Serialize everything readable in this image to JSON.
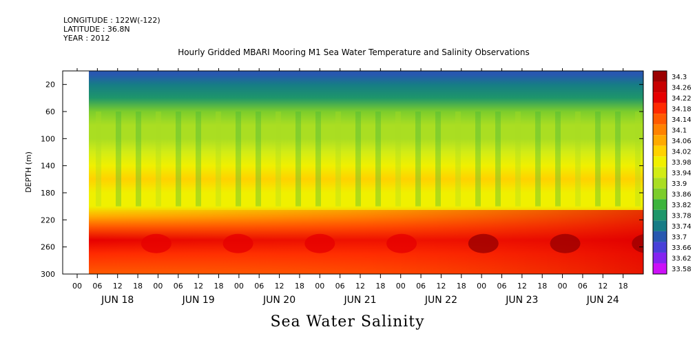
{
  "header": {
    "longitude": "LONGITUDE : 122W(-122)",
    "latitude": "LATITUDE : 36.8N",
    "year": "YEAR : 2012"
  },
  "chart_data": {
    "type": "heatmap",
    "title": "Hourly Gridded MBARI Mooring M1 Sea Water Temperature and Salinity Observations",
    "variable_label": "Sea Water Salinity",
    "ylabel": "DEPTH (m)",
    "y_ticks": [
      20,
      60,
      100,
      140,
      180,
      220,
      260,
      300
    ],
    "ylim": [
      300,
      0
    ],
    "y_reversed": true,
    "x_hour_ticks": [
      "00",
      "06",
      "12",
      "18",
      "00",
      "06",
      "12",
      "18",
      "00",
      "06",
      "12",
      "18",
      "00",
      "06",
      "12",
      "18",
      "00",
      "06",
      "12",
      "18",
      "00",
      "06",
      "12",
      "18",
      "00",
      "06",
      "12",
      "18"
    ],
    "x_day_labels": [
      "JUN 18",
      "JUN 19",
      "JUN 20",
      "JUN 21",
      "JUN 22",
      "JUN 23",
      "JUN 24"
    ],
    "colorbar_levels": [
      "34.3",
      "34.26",
      "34.22",
      "34.18",
      "34.14",
      "34.1",
      "34.06",
      "34.02",
      "33.98",
      "33.94",
      "33.9",
      "33.86",
      "33.82",
      "33.78",
      "33.74",
      "33.7",
      "33.66",
      "33.62",
      "33.58"
    ],
    "colorbar_colors": [
      "#9b0000",
      "#c80000",
      "#e60000",
      "#ff2a00",
      "#ff5a00",
      "#ff8200",
      "#ffaa00",
      "#ffd200",
      "#f0f000",
      "#d2ec16",
      "#aade22",
      "#7ccd2c",
      "#3cb43c",
      "#1e966a",
      "#167c86",
      "#2858b0",
      "#4840d8",
      "#8424f0",
      "#cc10f8"
    ],
    "depth_profile": [
      {
        "depth": 5,
        "salinity": 33.7
      },
      {
        "depth": 20,
        "salinity": 33.74
      },
      {
        "depth": 40,
        "salinity": 33.8
      },
      {
        "depth": 60,
        "salinity": 33.86
      },
      {
        "depth": 80,
        "salinity": 33.9
      },
      {
        "depth": 100,
        "salinity": 33.93
      },
      {
        "depth": 120,
        "salinity": 33.96
      },
      {
        "depth": 140,
        "salinity": 33.99
      },
      {
        "depth": 160,
        "salinity": 34.02
      },
      {
        "depth": 180,
        "salinity": 34.01
      },
      {
        "depth": 200,
        "salinity": 33.99
      },
      {
        "depth": 215,
        "salinity": 34.08
      },
      {
        "depth": 230,
        "salinity": 34.16
      },
      {
        "depth": 250,
        "salinity": 34.22
      },
      {
        "depth": 270,
        "salinity": 34.18
      },
      {
        "depth": 300,
        "salinity": 34.16
      }
    ]
  }
}
